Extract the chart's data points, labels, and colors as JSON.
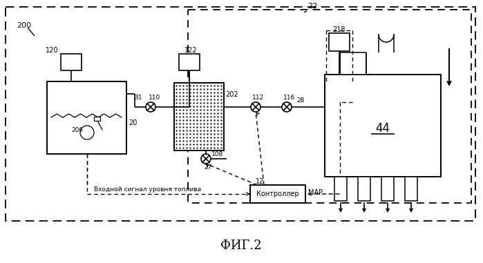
{
  "bg": "#ffffff",
  "figsize": [
    6.99,
    3.81
  ],
  "dpi": 100,
  "title": "ФИГ.2",
  "lbl_200": "200",
  "lbl_22": "22",
  "lbl_120": "120",
  "lbl_31": "31",
  "lbl_110": "110",
  "lbl_122": "122",
  "lbl_112": "112",
  "lbl_116": "116",
  "lbl_28": "28",
  "lbl_44": "44",
  "lbl_218": "218",
  "lbl_202": "202",
  "lbl_108": "108",
  "lbl_27": "27",
  "lbl_20": "20",
  "lbl_206": "206",
  "lbl_12": "12",
  "lbl_MAP": "MAP",
  "txt_ctrl": "Контроллер",
  "txt_sig": "Входной сигнал уровня топлива"
}
